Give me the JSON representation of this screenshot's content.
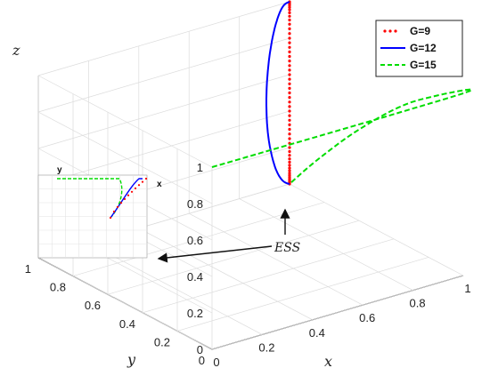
{
  "chart_data": {
    "type": "line",
    "title": "",
    "axes": {
      "x": {
        "label": "x",
        "range": [
          0,
          1
        ],
        "ticks": [
          "0",
          "0.2",
          "0.4",
          "0.6",
          "0.8",
          "1"
        ]
      },
      "y": {
        "label": "y",
        "range": [
          0,
          1
        ],
        "ticks": [
          "0",
          "0.2",
          "0.4",
          "0.6",
          "0.8",
          "1"
        ]
      },
      "z": {
        "label": "z",
        "range": [
          0,
          1
        ],
        "ticks": [
          "0",
          "0.2",
          "0.4",
          "0.6",
          "0.8",
          "1"
        ]
      }
    },
    "grid": true,
    "legend_position": "top-right",
    "series": [
      {
        "name": "G=9",
        "style": "dotted",
        "color": "#ff0000",
        "points": [
          [
            1,
            1,
            1
          ],
          [
            1,
            1,
            0.97
          ],
          [
            1,
            1,
            0.9
          ],
          [
            1,
            1,
            0.8
          ],
          [
            1,
            1,
            0.7
          ],
          [
            1,
            1,
            0.6
          ],
          [
            1,
            1,
            0.5
          ],
          [
            1,
            1,
            0.4
          ],
          [
            1,
            1,
            0.3
          ],
          [
            1,
            1,
            0.2
          ],
          [
            1,
            1,
            0.12
          ],
          [
            1,
            1,
            0.06
          ],
          [
            1,
            1,
            0.02
          ],
          [
            1,
            1,
            0
          ]
        ]
      },
      {
        "name": "G=12",
        "style": "solid",
        "color": "#0000ff",
        "points": [
          [
            1,
            1,
            1
          ],
          [
            1,
            1,
            0.97
          ],
          [
            1,
            1,
            0.88
          ],
          [
            1,
            1,
            0.75
          ],
          [
            1,
            1,
            0.6
          ],
          [
            1,
            1,
            0.45
          ],
          [
            1,
            1,
            0.3
          ],
          [
            1,
            1,
            0.18
          ],
          [
            1,
            1,
            0.08
          ],
          [
            1,
            1,
            0.02
          ],
          [
            1,
            1,
            0
          ]
        ]
      },
      {
        "name": "G=15",
        "style": "dashed",
        "color": "#00dd00",
        "points": [
          [
            0,
            0,
            1
          ],
          [
            1,
            0,
            1
          ],
          [
            1,
            0.3,
            0.8
          ],
          [
            1,
            0.6,
            0.5
          ],
          [
            1,
            0.85,
            0.2
          ],
          [
            1,
            1,
            0
          ]
        ]
      }
    ],
    "annotations": [
      {
        "text": "ESS",
        "target": "equilibrium point (1, 1, 0)"
      }
    ]
  },
  "inset": {
    "x_label": "x",
    "y_label": "y"
  },
  "legend_entries": [
    "G=9",
    "G=12",
    "G=15"
  ],
  "ess_label": "ESS"
}
